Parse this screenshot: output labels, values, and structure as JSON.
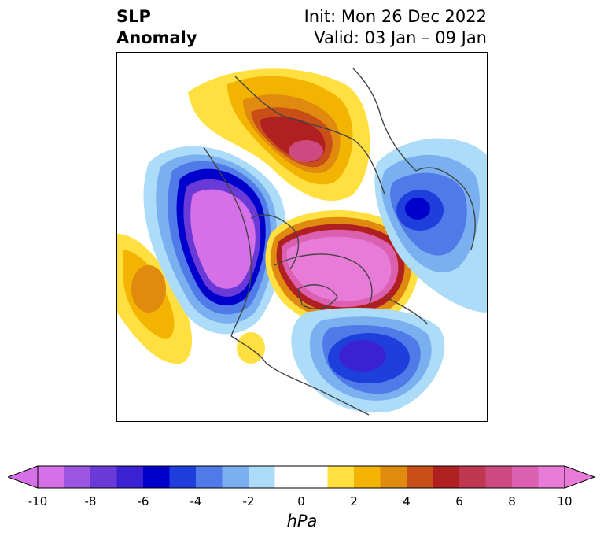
{
  "title": {
    "left_line1": "SLP",
    "left_line2": "Anomaly",
    "right_line1": "Init: Mon 26 Dec 2022",
    "right_line2": "Valid: 03 Jan – 09 Jan"
  },
  "colorbar": {
    "ticks": [
      "-10",
      "-8",
      "-6",
      "-4",
      "-2",
      "0",
      "2",
      "4",
      "6",
      "8",
      "10"
    ],
    "units": "hPa",
    "colors": [
      "#d670e8",
      "#9b55e0",
      "#6a3ad8",
      "#3a22d4",
      "#0000cc",
      "#1f3fdc",
      "#4f7ae8",
      "#7ab0f0",
      "#acdcf8",
      "#ffffff",
      "#ffffff",
      "#ffe040",
      "#f2b400",
      "#e08a10",
      "#c85018",
      "#b02020",
      "#c03850",
      "#cc4a80",
      "#dc60b0",
      "#e87ad8"
    ]
  }
}
